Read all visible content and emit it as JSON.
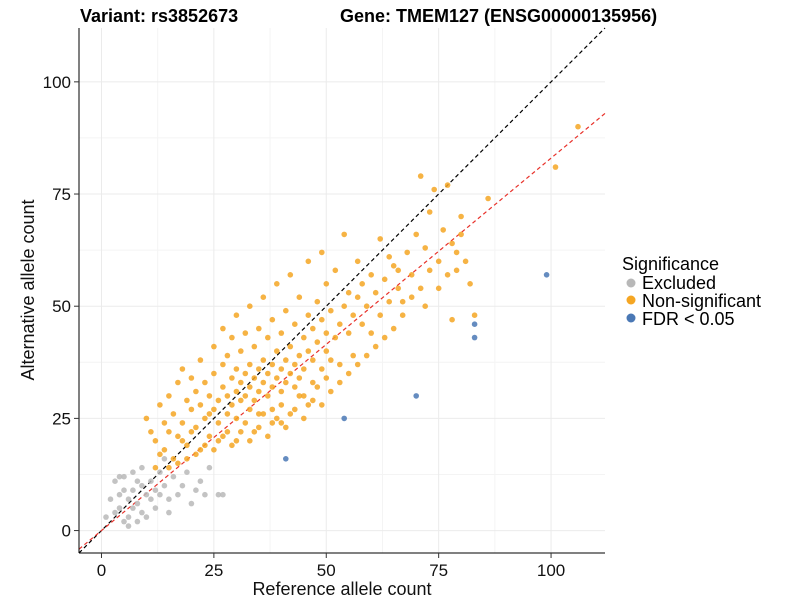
{
  "chart_data": {
    "type": "scatter",
    "title_left": "Variant: rs3852673",
    "title_right": "Gene: TMEM127 (ENSG00000135956)",
    "xlabel": "Reference allele count",
    "ylabel": "Alternative allele count",
    "xlim": [
      -5,
      112
    ],
    "ylim": [
      -5,
      112
    ],
    "xticks": [
      0,
      25,
      50,
      75,
      100
    ],
    "yticks": [
      0,
      25,
      50,
      75,
      100
    ],
    "grid": true,
    "legend": {
      "title": "Significance",
      "position": "right",
      "entries": [
        {
          "label": "Excluded",
          "color": "#b8b8b8"
        },
        {
          "label": "Non-significant",
          "color": "#f5a623"
        },
        {
          "label": "FDR < 0.05",
          "color": "#4a78b5"
        }
      ]
    },
    "reference_lines": [
      {
        "name": "identity line",
        "slope": 1,
        "intercept": 0,
        "color": "#000000",
        "dash": "dashed"
      },
      {
        "name": "fit line",
        "slope": 0.83,
        "intercept": 0,
        "color": "#e8312a",
        "dash": "dashed"
      }
    ],
    "series": [
      {
        "name": "Excluded",
        "color": "#b8b8b8",
        "points": [
          [
            2,
            7
          ],
          [
            3,
            4
          ],
          [
            3,
            11
          ],
          [
            4,
            5
          ],
          [
            4,
            8
          ],
          [
            5,
            2
          ],
          [
            5,
            12
          ],
          [
            5,
            9
          ],
          [
            6,
            3
          ],
          [
            6,
            7
          ],
          [
            6,
            1
          ],
          [
            7,
            5
          ],
          [
            7,
            9
          ],
          [
            7,
            13
          ],
          [
            8,
            2
          ],
          [
            8,
            11
          ],
          [
            8,
            6
          ],
          [
            9,
            10
          ],
          [
            9,
            14
          ],
          [
            10,
            8
          ],
          [
            10,
            3
          ],
          [
            11,
            7
          ],
          [
            11,
            11
          ],
          [
            12,
            9
          ],
          [
            12,
            5
          ],
          [
            13,
            13
          ],
          [
            13,
            8
          ],
          [
            14,
            10
          ],
          [
            14,
            16
          ],
          [
            15,
            7
          ],
          [
            16,
            12
          ],
          [
            17,
            8
          ],
          [
            18,
            10
          ],
          [
            19,
            13
          ],
          [
            20,
            6
          ],
          [
            21,
            9
          ],
          [
            22,
            11
          ],
          [
            23,
            8
          ],
          [
            24,
            14
          ],
          [
            26,
            8
          ],
          [
            27,
            8
          ],
          [
            1,
            3
          ],
          [
            4,
            12
          ],
          [
            9,
            4
          ],
          [
            15,
            4
          ]
        ]
      },
      {
        "name": "Non-significant",
        "color": "#f5a623",
        "points": [
          [
            10,
            25
          ],
          [
            12,
            20
          ],
          [
            13,
            28
          ],
          [
            14,
            18
          ],
          [
            15,
            22
          ],
          [
            15,
            30
          ],
          [
            16,
            26
          ],
          [
            17,
            33
          ],
          [
            17,
            21
          ],
          [
            18,
            24
          ],
          [
            18,
            36
          ],
          [
            19,
            29
          ],
          [
            19,
            19
          ],
          [
            20,
            27
          ],
          [
            20,
            34
          ],
          [
            21,
            23
          ],
          [
            21,
            31
          ],
          [
            22,
            28
          ],
          [
            22,
            38
          ],
          [
            23,
            25
          ],
          [
            23,
            33
          ],
          [
            24,
            30
          ],
          [
            24,
            21
          ],
          [
            25,
            35
          ],
          [
            25,
            27
          ],
          [
            25,
            41
          ],
          [
            26,
            29
          ],
          [
            26,
            24
          ],
          [
            27,
            32
          ],
          [
            27,
            37
          ],
          [
            27,
            45
          ],
          [
            28,
            26
          ],
          [
            28,
            30
          ],
          [
            28,
            39
          ],
          [
            29,
            34
          ],
          [
            29,
            28
          ],
          [
            29,
            43
          ],
          [
            30,
            31
          ],
          [
            30,
            36
          ],
          [
            30,
            25
          ],
          [
            30,
            48
          ],
          [
            31,
            33
          ],
          [
            31,
            29
          ],
          [
            31,
            40
          ],
          [
            32,
            35
          ],
          [
            32,
            30
          ],
          [
            32,
            44
          ],
          [
            33,
            32
          ],
          [
            33,
            27
          ],
          [
            33,
            37
          ],
          [
            33,
            50
          ],
          [
            34,
            34
          ],
          [
            34,
            29
          ],
          [
            34,
            41
          ],
          [
            35,
            36
          ],
          [
            35,
            31
          ],
          [
            35,
            45
          ],
          [
            35,
            26
          ],
          [
            36,
            33
          ],
          [
            36,
            38
          ],
          [
            36,
            52
          ],
          [
            37,
            35
          ],
          [
            37,
            30
          ],
          [
            37,
            43
          ],
          [
            38,
            37
          ],
          [
            38,
            32
          ],
          [
            38,
            47
          ],
          [
            38,
            27
          ],
          [
            39,
            34
          ],
          [
            39,
            40
          ],
          [
            39,
            55
          ],
          [
            40,
            36
          ],
          [
            40,
            31
          ],
          [
            40,
            44
          ],
          [
            40,
            24
          ],
          [
            41,
            38
          ],
          [
            41,
            33
          ],
          [
            41,
            49
          ],
          [
            42,
            35
          ],
          [
            42,
            41
          ],
          [
            42,
            57
          ],
          [
            43,
            37
          ],
          [
            43,
            32
          ],
          [
            43,
            46
          ],
          [
            44,
            39
          ],
          [
            44,
            34
          ],
          [
            44,
            52
          ],
          [
            45,
            36
          ],
          [
            45,
            43
          ],
          [
            45,
            30
          ],
          [
            46,
            40
          ],
          [
            46,
            48
          ],
          [
            46,
            60
          ],
          [
            47,
            38
          ],
          [
            47,
            33
          ],
          [
            47,
            45
          ],
          [
            48,
            42
          ],
          [
            48,
            51
          ],
          [
            49,
            36
          ],
          [
            49,
            47
          ],
          [
            49,
            62
          ],
          [
            50,
            40
          ],
          [
            50,
            44
          ],
          [
            50,
            55
          ],
          [
            51,
            38
          ],
          [
            51,
            49
          ],
          [
            52,
            43
          ],
          [
            52,
            58
          ],
          [
            53,
            46
          ],
          [
            53,
            37
          ],
          [
            54,
            50
          ],
          [
            54,
            66
          ],
          [
            55,
            44
          ],
          [
            55,
            53
          ],
          [
            56,
            48
          ],
          [
            56,
            39
          ],
          [
            57,
            52
          ],
          [
            57,
            60
          ],
          [
            58,
            46
          ],
          [
            58,
            55
          ],
          [
            59,
            50
          ],
          [
            60,
            57
          ],
          [
            60,
            44
          ],
          [
            61,
            53
          ],
          [
            62,
            48
          ],
          [
            62,
            65
          ],
          [
            63,
            56
          ],
          [
            64,
            51
          ],
          [
            65,
            59
          ],
          [
            66,
            54
          ],
          [
            67,
            48
          ],
          [
            68,
            62
          ],
          [
            69,
            57
          ],
          [
            70,
            66
          ],
          [
            71,
            54
          ],
          [
            71,
            79
          ],
          [
            72,
            63
          ],
          [
            72,
            50
          ],
          [
            73,
            71
          ],
          [
            74,
            76
          ],
          [
            75,
            60
          ],
          [
            76,
            67
          ],
          [
            77,
            77
          ],
          [
            78,
            64
          ],
          [
            78,
            47
          ],
          [
            79,
            58
          ],
          [
            80,
            66
          ],
          [
            80,
            70
          ],
          [
            82,
            55
          ],
          [
            83,
            48
          ],
          [
            86,
            74
          ],
          [
            101,
            81
          ],
          [
            106,
            90
          ],
          [
            18,
            20
          ],
          [
            20,
            22
          ],
          [
            22,
            18
          ],
          [
            24,
            26
          ],
          [
            26,
            20
          ],
          [
            28,
            22
          ],
          [
            30,
            20
          ],
          [
            32,
            24
          ],
          [
            34,
            22
          ],
          [
            36,
            26
          ],
          [
            38,
            24
          ],
          [
            40,
            28
          ],
          [
            42,
            26
          ],
          [
            44,
            30
          ],
          [
            46,
            28
          ],
          [
            48,
            32
          ],
          [
            50,
            34
          ],
          [
            12,
            14
          ],
          [
            14,
            24
          ],
          [
            16,
            16
          ],
          [
            11,
            22
          ],
          [
            13,
            17
          ],
          [
            15,
            14
          ],
          [
            17,
            15
          ],
          [
            19,
            16
          ],
          [
            21,
            17
          ],
          [
            23,
            19
          ],
          [
            25,
            18
          ],
          [
            27,
            21
          ],
          [
            29,
            19
          ],
          [
            31,
            22
          ],
          [
            33,
            20
          ],
          [
            35,
            23
          ],
          [
            37,
            21
          ],
          [
            39,
            25
          ],
          [
            41,
            23
          ],
          [
            43,
            27
          ],
          [
            45,
            25
          ],
          [
            47,
            29
          ],
          [
            49,
            28
          ],
          [
            51,
            31
          ],
          [
            53,
            33
          ],
          [
            55,
            35
          ],
          [
            57,
            37
          ],
          [
            59,
            39
          ],
          [
            61,
            41
          ],
          [
            63,
            43
          ],
          [
            65,
            45
          ],
          [
            67,
            51
          ],
          [
            64,
            61
          ],
          [
            66,
            58
          ],
          [
            69,
            52
          ],
          [
            73,
            58
          ],
          [
            75,
            54
          ],
          [
            77,
            57
          ],
          [
            79,
            62
          ],
          [
            81,
            60
          ]
        ]
      },
      {
        "name": "FDR < 0.05",
        "color": "#4a78b5",
        "points": [
          [
            41,
            16
          ],
          [
            54,
            25
          ],
          [
            70,
            30
          ],
          [
            83,
            43
          ],
          [
            83,
            46
          ],
          [
            99,
            57
          ]
        ]
      }
    ]
  }
}
